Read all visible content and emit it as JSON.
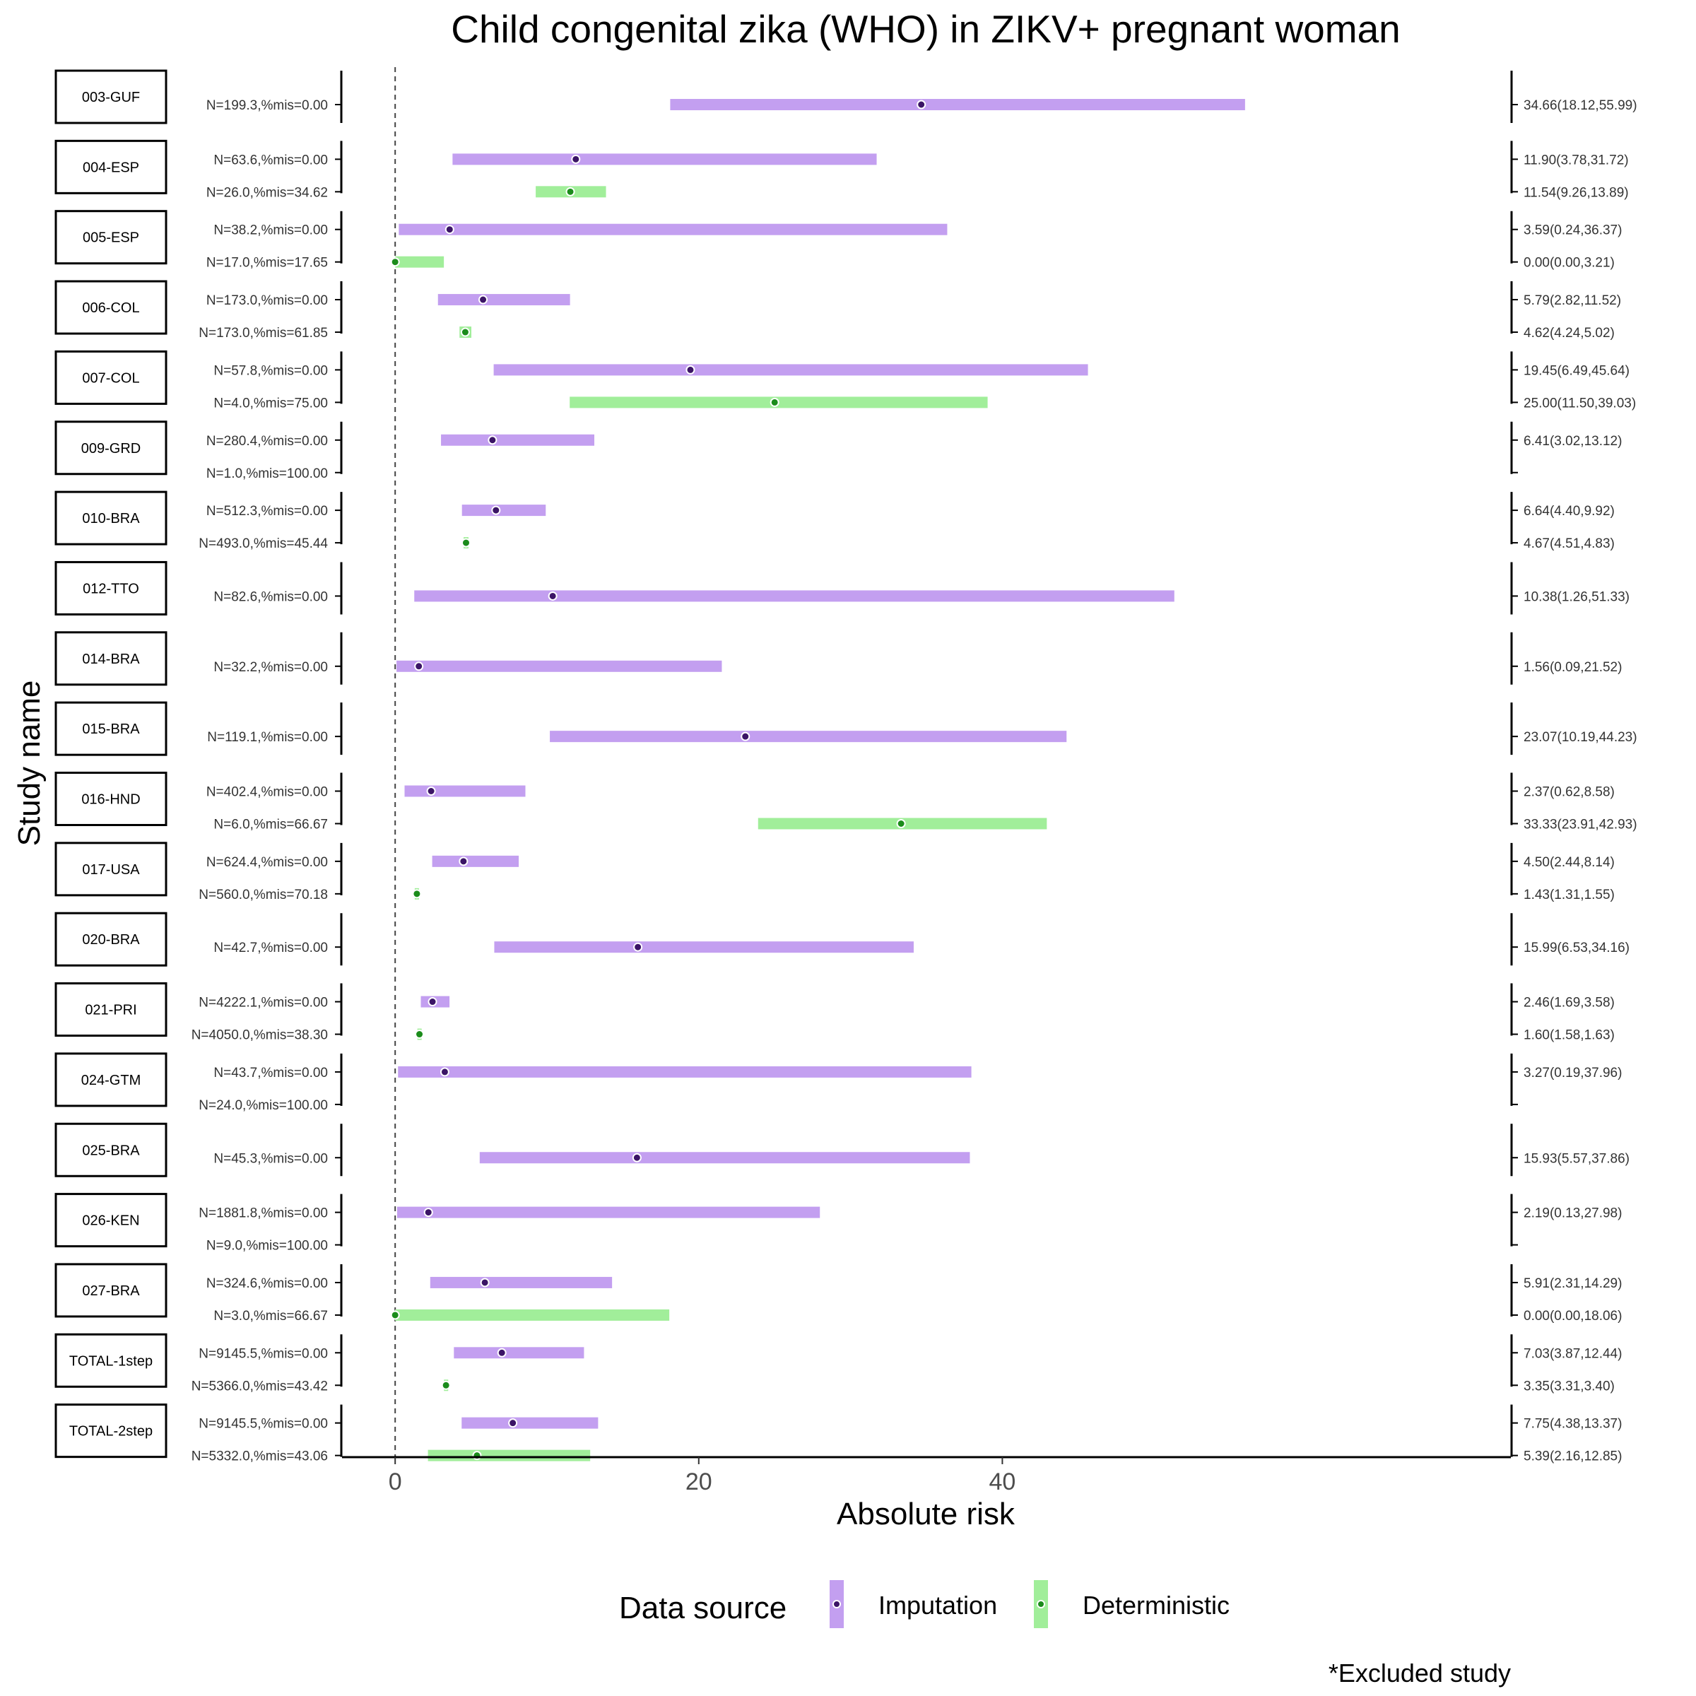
{
  "chart_data": {
    "type": "forest",
    "title": "Child congenital zika (WHO) in ZIKV+ pregnant woman",
    "xlabel": "Absolute risk",
    "ylabel": "Study name",
    "xlim": [
      -3.5,
      73.5
    ],
    "xticks": [
      0,
      20,
      40
    ],
    "reference_line_x": 0,
    "legend": {
      "title": "Data source",
      "position": "bottom",
      "entries": [
        {
          "label": "Imputation",
          "key": "imp"
        },
        {
          "label": "Deterministic",
          "key": "det"
        }
      ]
    },
    "colors": {
      "imp_bar": "#c39ff0",
      "imp_point": "#3b1466",
      "det_bar": "#a1ee9a",
      "det_point": "#1b8c1b"
    },
    "footnote": "*Excluded study",
    "studies": [
      {
        "name": "003-GUF",
        "rows": [
          {
            "source": "imp",
            "label": "N=199.3,%mis=0.00",
            "est": 34.66,
            "lo": 18.12,
            "hi": 55.99,
            "text": "34.66(18.12,55.99)"
          }
        ]
      },
      {
        "name": "004-ESP",
        "rows": [
          {
            "source": "imp",
            "label": "N=63.6,%mis=0.00",
            "est": 11.9,
            "lo": 3.78,
            "hi": 31.72,
            "text": "11.90(3.78,31.72)"
          },
          {
            "source": "det",
            "label": "N=26.0,%mis=34.62",
            "est": 11.54,
            "lo": 9.26,
            "hi": 13.89,
            "text": "11.54(9.26,13.89)"
          }
        ]
      },
      {
        "name": "005-ESP",
        "rows": [
          {
            "source": "imp",
            "label": "N=38.2,%mis=0.00",
            "est": 3.59,
            "lo": 0.24,
            "hi": 36.37,
            "text": "3.59(0.24,36.37)"
          },
          {
            "source": "det",
            "label": "N=17.0,%mis=17.65",
            "est": 0.0,
            "lo": 0.0,
            "hi": 3.21,
            "text": "0.00(0.00,3.21)"
          }
        ]
      },
      {
        "name": "006-COL",
        "rows": [
          {
            "source": "imp",
            "label": "N=173.0,%mis=0.00",
            "est": 5.79,
            "lo": 2.82,
            "hi": 11.52,
            "text": "5.79(2.82,11.52)"
          },
          {
            "source": "det",
            "label": "N=173.0,%mis=61.85",
            "est": 4.62,
            "lo": 4.24,
            "hi": 5.02,
            "text": "4.62(4.24,5.02)"
          }
        ]
      },
      {
        "name": "007-COL",
        "rows": [
          {
            "source": "imp",
            "label": "N=57.8,%mis=0.00",
            "est": 19.45,
            "lo": 6.49,
            "hi": 45.64,
            "text": "19.45(6.49,45.64)"
          },
          {
            "source": "det",
            "label": "N=4.0,%mis=75.00",
            "est": 25.0,
            "lo": 11.5,
            "hi": 39.03,
            "text": "25.00(11.50,39.03)"
          }
        ]
      },
      {
        "name": "009-GRD",
        "rows": [
          {
            "source": "imp",
            "label": "N=280.4,%mis=0.00",
            "est": 6.41,
            "lo": 3.02,
            "hi": 13.12,
            "text": "6.41(3.02,13.12)"
          },
          {
            "source": "det",
            "label": "N=1.0,%mis=100.00",
            "est": null,
            "lo": null,
            "hi": null,
            "text": ""
          }
        ]
      },
      {
        "name": "010-BRA",
        "rows": [
          {
            "source": "imp",
            "label": "N=512.3,%mis=0.00",
            "est": 6.64,
            "lo": 4.4,
            "hi": 9.92,
            "text": "6.64(4.40,9.92)"
          },
          {
            "source": "det",
            "label": "N=493.0,%mis=45.44",
            "est": 4.67,
            "lo": 4.51,
            "hi": 4.83,
            "text": "4.67(4.51,4.83)"
          }
        ]
      },
      {
        "name": "012-TTO",
        "rows": [
          {
            "source": "imp",
            "label": "N=82.6,%mis=0.00",
            "est": 10.38,
            "lo": 1.26,
            "hi": 51.33,
            "text": "10.38(1.26,51.33)"
          }
        ]
      },
      {
        "name": "014-BRA",
        "rows": [
          {
            "source": "imp",
            "label": "N=32.2,%mis=0.00",
            "est": 1.56,
            "lo": 0.09,
            "hi": 21.52,
            "text": "1.56(0.09,21.52)"
          }
        ]
      },
      {
        "name": "015-BRA",
        "rows": [
          {
            "source": "imp",
            "label": "N=119.1,%mis=0.00",
            "est": 23.07,
            "lo": 10.19,
            "hi": 44.23,
            "text": "23.07(10.19,44.23)"
          }
        ]
      },
      {
        "name": "016-HND",
        "rows": [
          {
            "source": "imp",
            "label": "N=402.4,%mis=0.00",
            "est": 2.37,
            "lo": 0.62,
            "hi": 8.58,
            "text": "2.37(0.62,8.58)"
          },
          {
            "source": "det",
            "label": "N=6.0,%mis=66.67",
            "est": 33.33,
            "lo": 23.91,
            "hi": 42.93,
            "text": "33.33(23.91,42.93)"
          }
        ]
      },
      {
        "name": "017-USA",
        "rows": [
          {
            "source": "imp",
            "label": "N=624.4,%mis=0.00",
            "est": 4.5,
            "lo": 2.44,
            "hi": 8.14,
            "text": "4.50(2.44,8.14)"
          },
          {
            "source": "det",
            "label": "N=560.0,%mis=70.18",
            "est": 1.43,
            "lo": 1.31,
            "hi": 1.55,
            "text": "1.43(1.31,1.55)"
          }
        ]
      },
      {
        "name": "020-BRA",
        "rows": [
          {
            "source": "imp",
            "label": "N=42.7,%mis=0.00",
            "est": 15.99,
            "lo": 6.53,
            "hi": 34.16,
            "text": "15.99(6.53,34.16)"
          }
        ]
      },
      {
        "name": "021-PRI",
        "rows": [
          {
            "source": "imp",
            "label": "N=4222.1,%mis=0.00",
            "est": 2.46,
            "lo": 1.69,
            "hi": 3.58,
            "text": "2.46(1.69,3.58)"
          },
          {
            "source": "det",
            "label": "N=4050.0,%mis=38.30",
            "est": 1.6,
            "lo": 1.58,
            "hi": 1.63,
            "text": "1.60(1.58,1.63)"
          }
        ]
      },
      {
        "name": "024-GTM",
        "rows": [
          {
            "source": "imp",
            "label": "N=43.7,%mis=0.00",
            "est": 3.27,
            "lo": 0.19,
            "hi": 37.96,
            "text": "3.27(0.19,37.96)"
          },
          {
            "source": "det",
            "label": "N=24.0,%mis=100.00",
            "est": null,
            "lo": null,
            "hi": null,
            "text": ""
          }
        ]
      },
      {
        "name": "025-BRA",
        "rows": [
          {
            "source": "imp",
            "label": "N=45.3,%mis=0.00",
            "est": 15.93,
            "lo": 5.57,
            "hi": 37.86,
            "text": "15.93(5.57,37.86)"
          }
        ]
      },
      {
        "name": "026-KEN",
        "rows": [
          {
            "source": "imp",
            "label": "N=1881.8,%mis=0.00",
            "est": 2.19,
            "lo": 0.13,
            "hi": 27.98,
            "text": "2.19(0.13,27.98)"
          },
          {
            "source": "det",
            "label": "N=9.0,%mis=100.00",
            "est": null,
            "lo": null,
            "hi": null,
            "text": ""
          }
        ]
      },
      {
        "name": "027-BRA",
        "rows": [
          {
            "source": "imp",
            "label": "N=324.6,%mis=0.00",
            "est": 5.91,
            "lo": 2.31,
            "hi": 14.29,
            "text": "5.91(2.31,14.29)"
          },
          {
            "source": "det",
            "label": "N=3.0,%mis=66.67",
            "est": 0.0,
            "lo": 0.0,
            "hi": 18.06,
            "text": "0.00(0.00,18.06)"
          }
        ]
      },
      {
        "name": "TOTAL-1step",
        "rows": [
          {
            "source": "imp",
            "label": "N=9145.5,%mis=0.00",
            "est": 7.03,
            "lo": 3.87,
            "hi": 12.44,
            "text": "7.03(3.87,12.44)"
          },
          {
            "source": "det",
            "label": "N=5366.0,%mis=43.42",
            "est": 3.35,
            "lo": 3.31,
            "hi": 3.4,
            "text": "3.35(3.31,3.40)"
          }
        ]
      },
      {
        "name": "TOTAL-2step",
        "rows": [
          {
            "source": "imp",
            "label": "N=9145.5,%mis=0.00",
            "est": 7.75,
            "lo": 4.38,
            "hi": 13.37,
            "text": "7.75(4.38,13.37)"
          },
          {
            "source": "det",
            "label": "N=5332.0,%mis=43.06",
            "est": 5.39,
            "lo": 2.16,
            "hi": 12.85,
            "text": "5.39(2.16,12.85)"
          }
        ]
      }
    ]
  }
}
